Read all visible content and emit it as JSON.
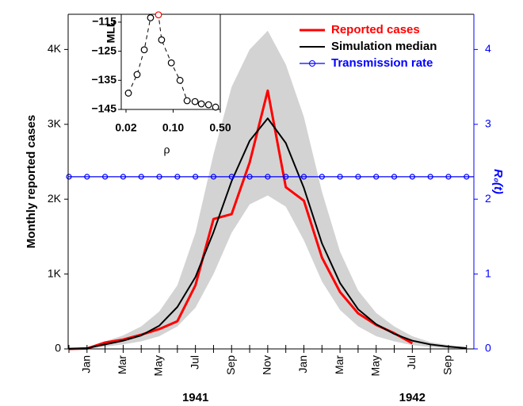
{
  "chart_data": [
    {
      "type": "line",
      "y_label": "Monthly reported cases",
      "y2_label": "R₀(t)",
      "categories": [
        null,
        "Jan",
        null,
        "Mar",
        null,
        "May",
        null,
        "Jul",
        null,
        "Sep",
        null,
        "Nov",
        null,
        "Jan",
        null,
        "Mar",
        null,
        "May",
        null,
        "Jul",
        null,
        "Sep",
        null
      ],
      "years": [
        "1941",
        "1942"
      ],
      "ylim": [
        0,
        4470
      ],
      "yticks": [
        0,
        {
          "value": 1000,
          "label": "1K"
        },
        {
          "value": 2000,
          "label": "2K"
        },
        {
          "value": 3000,
          "label": "3K"
        },
        {
          "value": 4000,
          "label": "4K"
        }
      ],
      "y2lim": [
        0,
        4.47
      ],
      "y2ticks": [
        0,
        1,
        2,
        3,
        4
      ],
      "y2_color": "#0000ff",
      "legend": "upper right",
      "band": {
        "color": "#d3d3d3",
        "lower": [
          0,
          0,
          30,
          60,
          100,
          170,
          300,
          550,
          1000,
          1550,
          1930,
          2050,
          1900,
          1450,
          900,
          520,
          300,
          170,
          100,
          50,
          25,
          10,
          0
        ],
        "upper": [
          0,
          20,
          100,
          180,
          300,
          500,
          850,
          1550,
          2600,
          3500,
          4000,
          4250,
          3800,
          3100,
          2100,
          1300,
          780,
          480,
          300,
          170,
          90,
          50,
          20
        ]
      },
      "series": [
        {
          "name": "Reported cases",
          "color": "#ff0000",
          "width": 3,
          "values": [
            0,
            5,
            85,
            125,
            190,
            265,
            370,
            850,
            1735,
            1800,
            2490,
            3450,
            2160,
            1980,
            1220,
            760,
            475,
            320,
            210,
            75,
            null,
            null,
            null
          ]
        },
        {
          "name": "Simulation median",
          "color": "#000000",
          "width": 2,
          "values": [
            0,
            10,
            60,
            110,
            180,
            310,
            560,
            960,
            1560,
            2240,
            2780,
            3080,
            2750,
            2150,
            1410,
            880,
            530,
            330,
            200,
            110,
            60,
            30,
            10
          ]
        },
        {
          "name": "Transmission rate",
          "color": "#0000ff",
          "width": 1.2,
          "axis": "y2",
          "marker": "circle",
          "values": [
            2.3,
            2.3,
            2.3,
            2.3,
            2.3,
            2.3,
            2.3,
            2.3,
            2.3,
            2.3,
            2.3,
            2.3,
            2.3,
            2.3,
            2.3,
            2.3,
            2.3,
            2.3,
            2.3,
            2.3,
            2.3,
            2.3,
            2.3
          ]
        }
      ]
    },
    {
      "type": "scatter",
      "x_label": "ρ",
      "y_label": "MLL",
      "xscale": "log",
      "xlim": [
        0.017,
        0.5
      ],
      "xticks": [
        0.02,
        {
          "value": 0.1,
          "label": "0.10"
        },
        {
          "value": 0.5,
          "label": "0.50"
        }
      ],
      "ylim": [
        -145,
        -112.3
      ],
      "yticks": [
        {
          "value": -115,
          "label": "−115"
        },
        {
          "value": -125,
          "label": "−125"
        },
        {
          "value": -135,
          "label": "−135"
        },
        {
          "value": -145,
          "label": "−145"
        }
      ],
      "x": [
        0.0217,
        0.0292,
        0.0373,
        0.0462,
        0.0606,
        0.0674,
        0.0939,
        0.1263,
        0.161,
        0.211,
        0.262,
        0.335,
        0.426
      ],
      "values": [
        -139.4,
        -133,
        -124.5,
        -113.5,
        -112.5,
        -121.1,
        -129,
        -135,
        -142,
        -142.3,
        -143.1,
        -143.4,
        -144.2
      ],
      "point_colors": [
        "#000000",
        "#000000",
        "#000000",
        "#000000",
        "#ff0000",
        "#000000",
        "#000000",
        "#000000",
        "#000000",
        "#000000",
        "#000000",
        "#000000",
        "#000000"
      ]
    }
  ]
}
